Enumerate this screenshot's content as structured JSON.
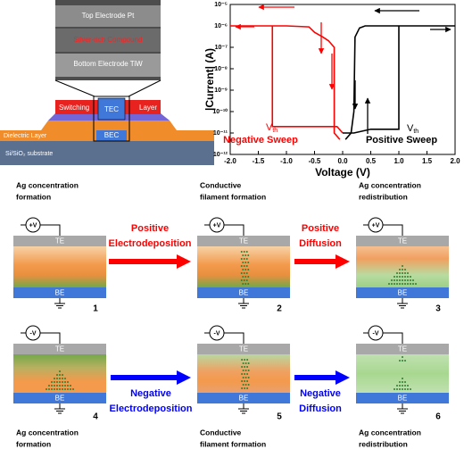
{
  "device": {
    "sem_top": "Top Electrode Pt",
    "sem_middle": "Silver-rich Compound",
    "sem_bottom": "Bottom Electrode TiW",
    "switching": "Switching",
    "tec": "TEC",
    "layer": "Layer",
    "bec": "BEC",
    "dielectric": "Dielectric Layer",
    "substrate": "Si/SiO₂ substrate"
  },
  "chart_data": {
    "type": "line",
    "xlabel": "Voltage (V)",
    "ylabel": "|Current| (A)",
    "xlim": [
      -2,
      2
    ],
    "xticks": [
      {
        "value": -2,
        "label": "-2.0"
      },
      -1.5,
      {
        "value": -1,
        "label": "-1.0"
      },
      -0.5,
      {
        "value": 0,
        "label": "0.0"
      },
      0.5,
      {
        "value": 1,
        "label": "1.0"
      },
      1.5,
      {
        "value": 2,
        "label": "2.0"
      }
    ],
    "ylim": [
      1e-12,
      1e-05
    ],
    "log_y": true,
    "yticks": [
      {
        "value": 1e-12,
        "label": "10⁻¹²"
      },
      {
        "value": 1e-11,
        "label": "10⁻¹¹"
      },
      {
        "value": 1e-10,
        "label": "10⁻¹⁰"
      },
      {
        "value": 1e-09,
        "label": "10⁻⁹"
      },
      {
        "value": 1e-08,
        "label": "10⁻⁸"
      },
      {
        "value": 1e-07,
        "label": "10⁻⁷"
      },
      {
        "value": 1e-06,
        "label": "10⁻⁶"
      },
      {
        "value": 1e-05,
        "label": "10⁻⁵"
      }
    ],
    "series": [
      {
        "name": "Negative Sweep",
        "color": "#ff0000",
        "x": [
          0,
          -0.1,
          -0.5,
          -1.0,
          -1.25,
          -1.25,
          -1.6,
          -2.0,
          -1.5,
          -1.0,
          -0.6,
          -0.5,
          -0.35,
          -0.25,
          -0.15,
          -0.15,
          -0.05
        ],
        "values": [
          1e-11,
          2e-11,
          2e-11,
          2e-11,
          2e-11,
          1e-06,
          1e-06,
          1e-06,
          1e-06,
          1e-06,
          9e-07,
          5e-07,
          3e-07,
          2e-07,
          1e-07,
          1e-11,
          5e-12
        ]
      },
      {
        "name": "Positive Sweep",
        "color": "#000000",
        "x": [
          0,
          0.2,
          0.5,
          1.0,
          1.0,
          1.5,
          2.0,
          1.5,
          0.4,
          0.3,
          0.22,
          0.2,
          0.15,
          0.05
        ],
        "values": [
          1e-11,
          1e-11,
          1.5e-11,
          1.5e-11,
          1e-06,
          1e-06,
          1e-06,
          1e-06,
          1e-06,
          8e-07,
          3e-07,
          1e-10,
          1e-11,
          5e-12
        ]
      }
    ],
    "annotations": [
      {
        "text": "V",
        "sub": "th"
      },
      {
        "text": "V",
        "sub": "th"
      }
    ]
  },
  "diagram": {
    "panels": [
      {
        "caption": [
          "Ag concentration",
          "formation"
        ],
        "bias": "+V",
        "te": "TE",
        "be": "BE",
        "number": 1
      },
      {
        "caption": [
          "Conductive",
          "filament formation"
        ],
        "bias": "+V",
        "te": "TE",
        "be": "BE",
        "number": 2
      },
      {
        "caption": [
          "Ag concentration",
          "redistribution"
        ],
        "bias": "+V",
        "te": "TE",
        "be": "BE",
        "number": 3
      },
      {
        "caption": [
          "Ag concentration",
          "formation"
        ],
        "bias": "-V",
        "te": "TE",
        "be": "BE",
        "number": 4
      },
      {
        "caption": [
          "Conductive",
          "filament formation"
        ],
        "bias": "-V",
        "te": "TE",
        "be": "BE",
        "number": 5
      },
      {
        "caption": [
          "Ag concentration",
          "redistribution"
        ],
        "bias": "-V",
        "te": "TE",
        "be": "BE",
        "number": 6
      }
    ],
    "arrows": [
      {
        "lines": [
          "Positive",
          "Electrodeposition"
        ],
        "color": "#ff0000"
      },
      {
        "lines": [
          "Positive",
          "Diffusion"
        ],
        "color": "#ff0000"
      },
      {
        "lines": [
          "Negative",
          "Electrodeposition"
        ],
        "color": "#0000ff"
      },
      {
        "lines": [
          "Negative",
          "Diffusion"
        ],
        "color": "#0000ff"
      }
    ]
  }
}
